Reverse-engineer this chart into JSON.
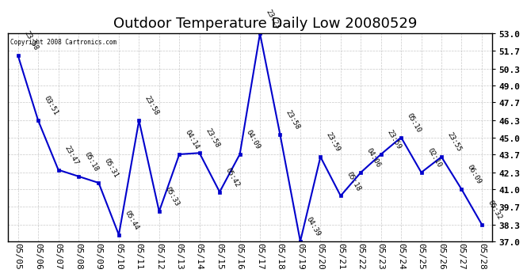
{
  "title": "Outdoor Temperature Daily Low 20080529",
  "copyright": "Copyright 2008 Cartronics.com",
  "x_labels": [
    "05/05",
    "05/06",
    "05/07",
    "05/08",
    "05/09",
    "05/10",
    "05/11",
    "05/12",
    "05/13",
    "05/14",
    "05/15",
    "05/16",
    "05/17",
    "05/18",
    "05/19",
    "05/20",
    "05/21",
    "05/22",
    "05/23",
    "05/24",
    "05/25",
    "05/26",
    "05/27",
    "05/28"
  ],
  "y_values": [
    51.3,
    46.3,
    42.5,
    42.0,
    41.5,
    37.5,
    46.3,
    39.3,
    43.7,
    43.8,
    40.8,
    43.7,
    53.0,
    45.2,
    37.0,
    43.5,
    40.5,
    42.3,
    43.7,
    45.0,
    42.3,
    43.5,
    41.0,
    38.3
  ],
  "point_labels": [
    "23:58",
    "03:51",
    "23:47",
    "05:18",
    "05:31",
    "05:44",
    "23:58",
    "05:33",
    "04:14",
    "23:58",
    "05:42",
    "04:09",
    "23:23",
    "23:58",
    "04:39",
    "23:59",
    "05:18",
    "04:06",
    "23:59",
    "05:10",
    "02:10",
    "23:55",
    "06:09",
    "05:32"
  ],
  "ylim_min": 37.0,
  "ylim_max": 53.0,
  "yticks": [
    37.0,
    38.3,
    39.7,
    41.0,
    42.3,
    43.7,
    45.0,
    46.3,
    47.7,
    49.0,
    50.3,
    51.7,
    53.0
  ],
  "line_color": "#0000cc",
  "marker_color": "#0000cc",
  "bg_color": "#ffffff",
  "grid_color": "#bbbbbb",
  "tick_fontsize": 8,
  "title_fontsize": 13,
  "label_fontsize": 6.5
}
